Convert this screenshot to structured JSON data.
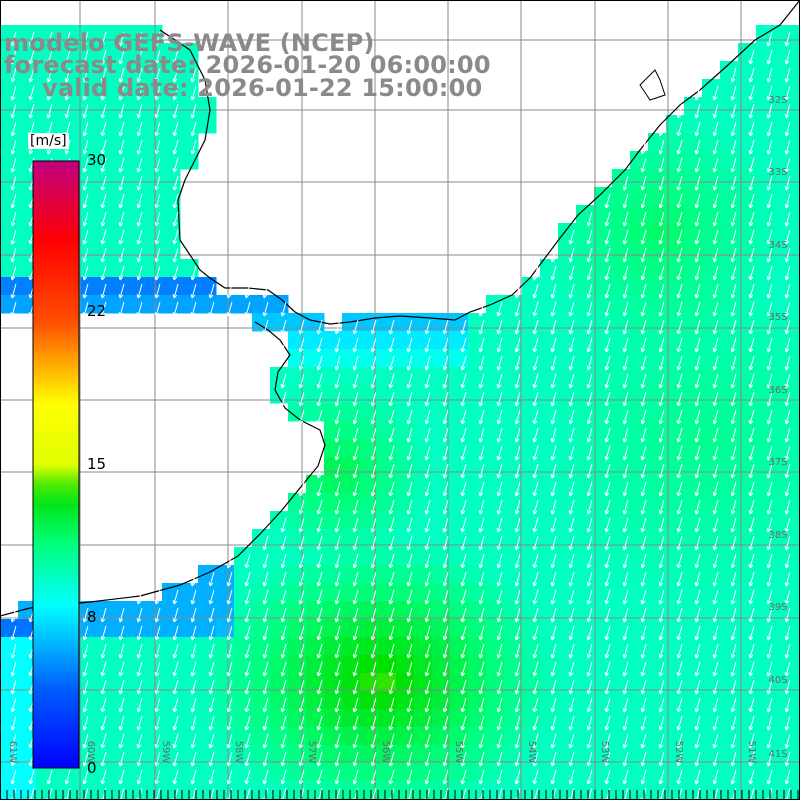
{
  "header": {
    "model_line": "modelo GEFS-WAVE (NCEP)",
    "forecast_line": "forecast date: 2026-01-20 06:00:00",
    "valid_line": "valid date: 2026-01-22 15:00:00"
  },
  "colorbar": {
    "unit": "[m/s]",
    "ticks": [
      "30",
      "22",
      "15",
      "8",
      "0"
    ],
    "tick_values": [
      30,
      22,
      15,
      8,
      0
    ],
    "range": [
      0,
      30
    ],
    "colors": [
      "#0000ff",
      "#00b0ff",
      "#00ffff",
      "#00ff00",
      "#ffff00",
      "#ff8000",
      "#ff0000",
      "#c00080"
    ]
  },
  "map": {
    "lat_labels": [
      "32S",
      "33S",
      "34S",
      "35S",
      "36S",
      "37S",
      "38S",
      "39S",
      "40S",
      "41S"
    ],
    "lon_labels": [
      "61W",
      "60W",
      "59W",
      "58W",
      "57W",
      "56W",
      "55W",
      "54W",
      "53W",
      "52W",
      "51W"
    ],
    "grid_color": "#888888",
    "land_color": "#ffffff",
    "coast_color": "#000000",
    "wind_direction": "north-northeasterly, blowing toward south-southwest"
  }
}
